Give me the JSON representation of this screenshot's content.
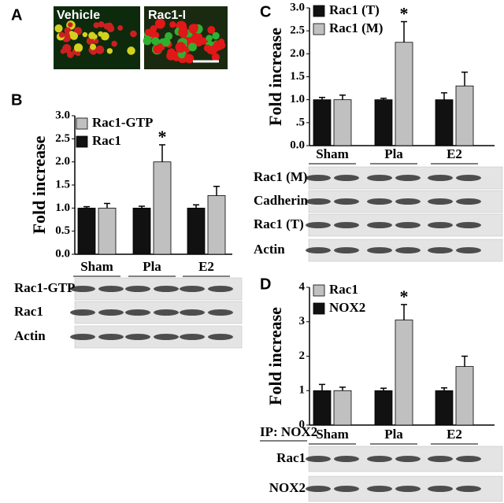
{
  "panel_labels": [
    "A",
    "B",
    "C",
    "D"
  ],
  "panel_a": {
    "labels": [
      "Vehicle",
      "Rac1-I"
    ]
  },
  "chart_data": [
    {
      "type": "bar",
      "ylabel": "Fold  increase",
      "categories": [
        "Sham",
        "Pla",
        "E2"
      ],
      "series": [
        {
          "name": "Rac1-GTP",
          "color": "#c0c0c0",
          "values": [
            1.0,
            2.0,
            1.27
          ],
          "errors": [
            0.1,
            0.37,
            0.2
          ]
        },
        {
          "name": "Rac1",
          "color": "#111111",
          "values": [
            1.0,
            1.0,
            1.0
          ],
          "errors": [
            0.03,
            0.04,
            0.07
          ]
        }
      ],
      "ylim": [
        0,
        3.0
      ],
      "yticks": [
        {
          "value": 0,
          "label": "0.0"
        },
        0.5,
        {
          "value": 1,
          "label": "1.0"
        },
        1.5,
        {
          "value": 2,
          "label": "2.0"
        },
        2.5,
        {
          "value": 3,
          "label": "3.0"
        }
      ],
      "annotation": "*"
    },
    {
      "type": "bar",
      "ylabel": "Fold  increase",
      "categories": [
        "Sham",
        "Pla",
        "E2"
      ],
      "series": [
        {
          "name": "Rac1 (T)",
          "color": "#111111",
          "values": [
            1.0,
            1.0,
            1.0
          ],
          "errors": [
            0.05,
            0.03,
            0.15
          ]
        },
        {
          "name": "Rac1 (M)",
          "color": "#c0c0c0",
          "values": [
            1.0,
            2.25,
            1.3
          ],
          "errors": [
            0.1,
            0.45,
            0.3
          ]
        }
      ],
      "ylim": [
        0,
        3.0
      ],
      "yticks": [
        {
          "value": 0,
          "label": "0.0"
        },
        {
          "value": 0.5,
          "label": ".5"
        },
        {
          "value": 1,
          "label": "1.0"
        },
        1.5,
        {
          "value": 2,
          "label": "2.0"
        },
        2.5,
        {
          "value": 3,
          "label": "3.0"
        }
      ],
      "annotation": "*"
    },
    {
      "type": "bar",
      "ylabel": "Fold  increase",
      "categories": [
        "Sham",
        "Pla",
        "E2"
      ],
      "series": [
        {
          "name": "Rac1",
          "color": "#c0c0c0",
          "values": [
            1.0,
            3.05,
            1.7
          ],
          "errors": [
            0.1,
            0.45,
            0.3
          ]
        },
        {
          "name": "NOX2",
          "color": "#111111",
          "values": [
            1.0,
            1.0,
            1.0
          ],
          "errors": [
            0.18,
            0.07,
            0.08
          ]
        }
      ],
      "ylim": [
        0,
        4
      ],
      "yticks": [
        0,
        1,
        2,
        3,
        4
      ],
      "annotation": "*"
    }
  ],
  "blots": [
    {
      "rows": [
        "Rac1-GTP",
        "Rac1",
        "Actin"
      ]
    },
    {
      "rows": [
        "Rac1 (M)",
        "Cadherin",
        "Rac1 (T)",
        "Actin"
      ]
    },
    {
      "rows": [
        "Rac1",
        "NOX2"
      ]
    }
  ],
  "ip_label": "IP: NOX2"
}
